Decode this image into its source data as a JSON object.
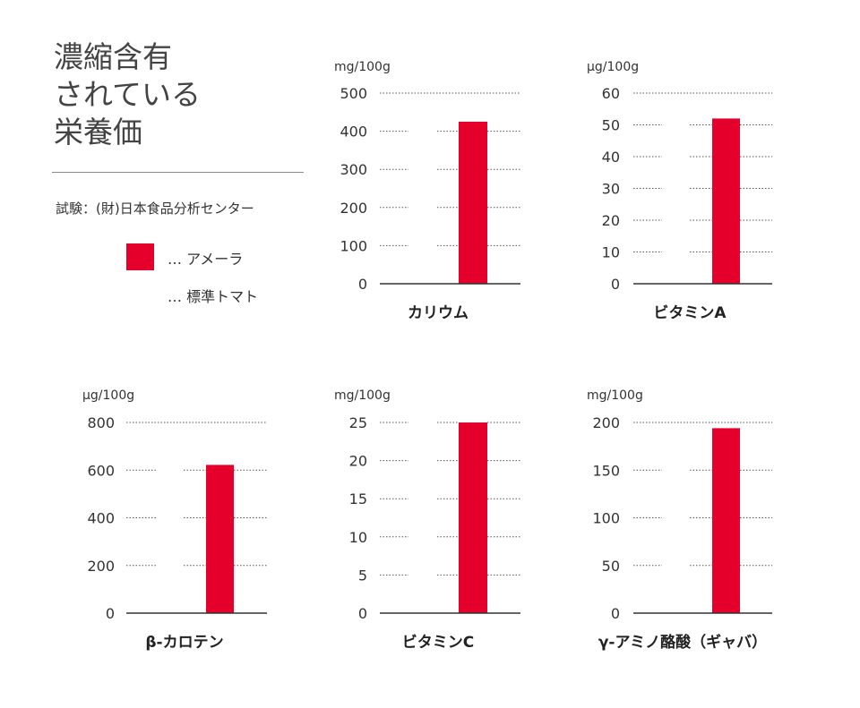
{
  "title_lines": [
    "濃縮含有",
    "されている",
    "栄養価"
  ],
  "source": "試験：(財)日本食品分析センター",
  "legend": [
    {
      "marker": "…",
      "label": "アメーラ",
      "color": "#e4002b"
    },
    {
      "marker": "…",
      "label": "標準トマト"
    }
  ],
  "colors": {
    "bar": "#e4002b",
    "grid": "#555555",
    "axis": "#333333"
  },
  "chart_data": [
    {
      "type": "bar",
      "title": "カリウム",
      "unit": "mg/100g",
      "ylim": [
        0,
        500
      ],
      "yticks": [
        0,
        100,
        200,
        300,
        400,
        500
      ],
      "series": [
        {
          "name": "アメーラ",
          "values": [
            425
          ]
        }
      ]
    },
    {
      "type": "bar",
      "title": "ビタミンA",
      "unit": "μg/100g",
      "ylim": [
        0,
        60
      ],
      "yticks": [
        0,
        10,
        20,
        30,
        40,
        50,
        60
      ],
      "series": [
        {
          "name": "アメーラ",
          "values": [
            52
          ]
        }
      ]
    },
    {
      "type": "bar",
      "title": "β-カロテン",
      "unit": "μg/100g",
      "ylim": [
        0,
        800
      ],
      "yticks": [
        0,
        200,
        400,
        600,
        800
      ],
      "series": [
        {
          "name": "アメーラ",
          "values": [
            622
          ]
        }
      ]
    },
    {
      "type": "bar",
      "title": "ビタミンC",
      "unit": "mg/100g",
      "ylim": [
        0,
        25
      ],
      "yticks": [
        0,
        5,
        10,
        15,
        20,
        25
      ],
      "series": [
        {
          "name": "アメーラ",
          "values": [
            25
          ]
        }
      ]
    },
    {
      "type": "bar",
      "title": "γ-アミノ酪酸（ギャバ）",
      "unit": "mg/100g",
      "ylim": [
        0,
        200
      ],
      "yticks": [
        0,
        50,
        100,
        150,
        200
      ],
      "series": [
        {
          "name": "アメーラ",
          "values": [
            194
          ]
        }
      ]
    }
  ]
}
